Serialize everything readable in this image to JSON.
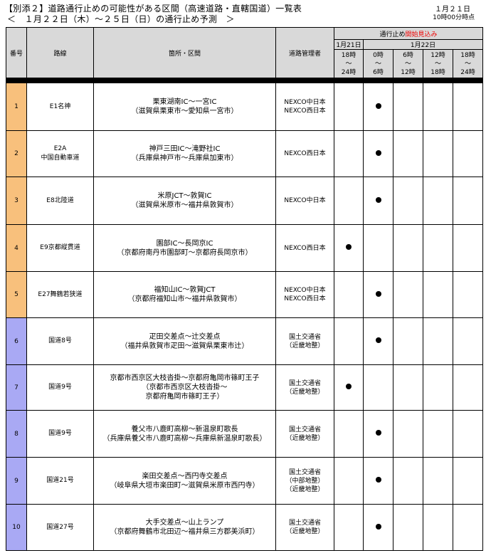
{
  "header": {
    "title": "【別添２】道路通行止めの可能性がある区間（高速道路・直轄国道）一覧表",
    "subtitle": "＜　１月２２日（木）～２５日（日）の通行止め予測　＞",
    "date": "１月２１日",
    "time": "10時00分時点"
  },
  "table": {
    "col_num": "番号",
    "col_route": "路線",
    "col_section": "箇所・区間",
    "col_manager": "道路管理者",
    "closure_prefix": "通行止め",
    "closure_highlight": "開始見込み",
    "highlight_color": "#e00000",
    "date1": "1月21日",
    "date2": "1月22日",
    "slots": [
      {
        "a": "18時",
        "b": "～",
        "c": "24時"
      },
      {
        "a": "0時",
        "b": "～",
        "c": "6時"
      },
      {
        "a": "6時",
        "b": "～",
        "c": "12時"
      },
      {
        "a": "12時",
        "b": "～",
        "c": "18時"
      },
      {
        "a": "18時",
        "b": "～",
        "c": "24時"
      }
    ],
    "rows": [
      {
        "no": "1",
        "route": "E1名神",
        "route2": "",
        "sec1": "栗東湖南IC～一宮IC",
        "sec2": "（滋賀県栗東市～愛知県一宮市）",
        "sec3": "",
        "mgr": [
          "NEXCO中日本",
          "NEXCO西日本"
        ],
        "slot": 1,
        "color": "orange"
      },
      {
        "no": "2",
        "route": "E2A",
        "route2": "中国自動車道",
        "sec1": "神戸三田IC～滝野社IC",
        "sec2": "（兵庫県神戸市～兵庫県加東市）",
        "sec3": "",
        "mgr": [
          "NEXCO西日本"
        ],
        "slot": 1,
        "color": "orange"
      },
      {
        "no": "3",
        "route": "E8北陸道",
        "route2": "",
        "sec1": "米原JCT～敦賀IC",
        "sec2": "（滋賀県米原市～福井県敦賀市）",
        "sec3": "",
        "mgr": [
          "NEXCO中日本"
        ],
        "slot": 1,
        "color": "orange"
      },
      {
        "no": "4",
        "route": "E9京都縦貫道",
        "route2": "",
        "sec1": "園部IC～長岡京IC",
        "sec2": "（京都府南丹市園部町～京都府長岡京市）",
        "sec3": "",
        "mgr": [
          "NEXCO西日本"
        ],
        "slot": 0,
        "color": "orange"
      },
      {
        "no": "5",
        "route": "E27舞鶴若狭道",
        "route2": "",
        "sec1": "福知山IC～敦賀JCT",
        "sec2": "（京都府福知山市～福井県敦賀市）",
        "sec3": "",
        "mgr": [
          "NEXCO中日本",
          "NEXCO西日本"
        ],
        "slot": 1,
        "color": "orange"
      },
      {
        "no": "6",
        "route": "国道8号",
        "route2": "",
        "sec1": "疋田交差点～辻交差点",
        "sec2": "（福井県敦賀市疋田～滋賀県栗東市辻）",
        "sec3": "",
        "mgr": [
          "国土交通省",
          "（近畿地整）"
        ],
        "slot": 1,
        "color": "blue"
      },
      {
        "no": "7",
        "route": "国道9号",
        "route2": "",
        "sec1": "京都市西京区大枝沓掛～京都府亀岡市篠町王子",
        "sec2": "（京都市西京区大枝沓掛～",
        "sec3": "京都府亀岡市篠町王子）",
        "mgr": [
          "国土交通省",
          "（近畿地整）"
        ],
        "slot": 0,
        "color": "blue"
      },
      {
        "no": "8",
        "route": "国道9号",
        "route2": "",
        "sec1": "養父市八鹿町高柳～新温泉町歌長",
        "sec2": "（兵庫県養父市八鹿町高柳～兵庫県新温泉町歌長）",
        "sec3": "",
        "mgr": [
          "国土交通省",
          "（近畿地整）"
        ],
        "slot": 1,
        "color": "blue"
      },
      {
        "no": "9",
        "route": "国道21号",
        "route2": "",
        "sec1": "楽田交差点～西円寺交差点",
        "sec2": "（岐阜県大垣市楽田町～滋賀県米原市西円寺）",
        "sec3": "",
        "mgr": [
          "国土交通省",
          "（中部地整）",
          "（近畿地整）"
        ],
        "slot": 1,
        "color": "blue"
      },
      {
        "no": "10",
        "route": "国道27号",
        "route2": "",
        "sec1": "大手交差点～山上ランプ",
        "sec2": "（京都府舞鶴市北田辺～福井県三方郡美浜町）",
        "sec3": "",
        "mgr": [
          "国土交通省",
          "（近畿地整）"
        ],
        "slot": 1,
        "color": "blue"
      }
    ]
  }
}
